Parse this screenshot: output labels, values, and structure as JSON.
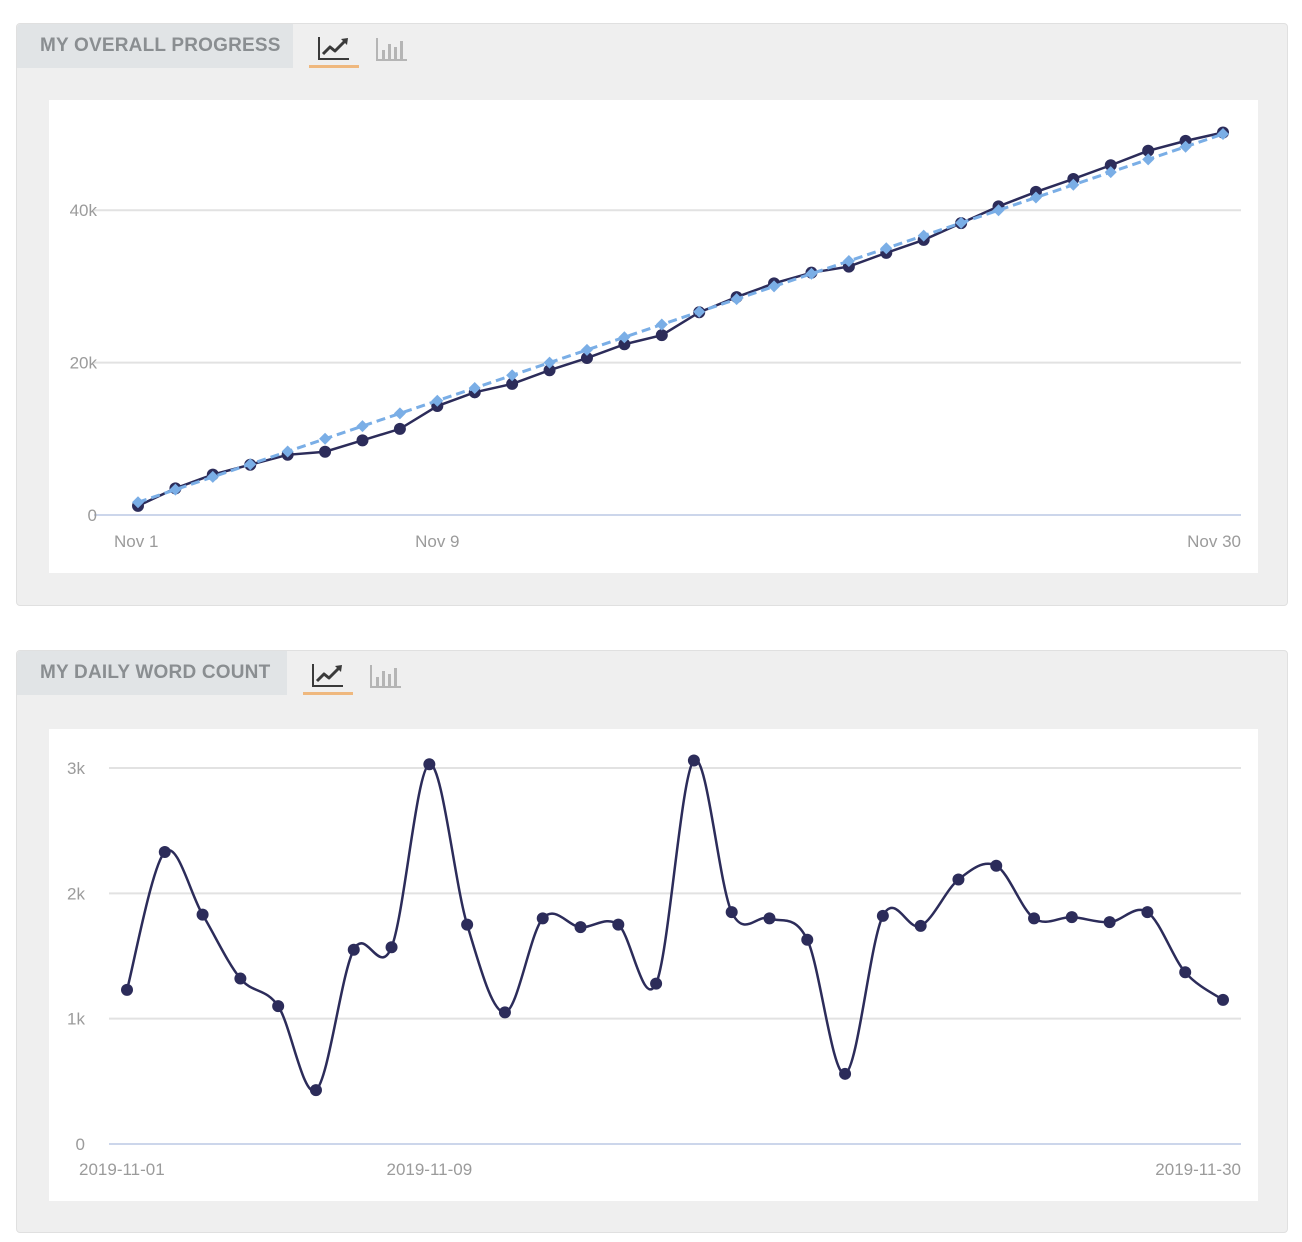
{
  "panels": {
    "progress": {
      "title": "MY OVERALL PROGRESS",
      "tabs": [
        {
          "icon": "line-chart-icon",
          "active": true
        },
        {
          "icon": "bar-chart-icon",
          "active": false
        }
      ]
    },
    "daily": {
      "title": "MY DAILY WORD COUNT",
      "tabs": [
        {
          "icon": "line-chart-icon",
          "active": true
        },
        {
          "icon": "bar-chart-icon",
          "active": false
        }
      ]
    }
  },
  "colors": {
    "actual": "#2c2c5a",
    "target": "#7aaee6",
    "grid": "#e2e2e2",
    "axis": "#ccd6eb",
    "tab_active": "#efb87e",
    "tick_text": "#9b9b9b"
  },
  "chart_data": [
    {
      "type": "line",
      "x": [
        "Nov 1",
        "Nov 2",
        "Nov 3",
        "Nov 4",
        "Nov 5",
        "Nov 6",
        "Nov 7",
        "Nov 8",
        "Nov 9",
        "Nov 10",
        "Nov 11",
        "Nov 12",
        "Nov 13",
        "Nov 14",
        "Nov 15",
        "Nov 16",
        "Nov 17",
        "Nov 18",
        "Nov 19",
        "Nov 20",
        "Nov 21",
        "Nov 22",
        "Nov 23",
        "Nov 24",
        "Nov 25",
        "Nov 26",
        "Nov 27",
        "Nov 28",
        "Nov 29",
        "Nov 30"
      ],
      "x_tick_labels": [
        "Nov 1",
        "Nov 9",
        "Nov 30"
      ],
      "y_ticks": [
        0,
        20000,
        40000
      ],
      "y_tick_labels": [
        "0",
        "20k",
        "40k"
      ],
      "ylim": [
        0,
        50000
      ],
      "grid": true,
      "series": [
        {
          "style": "solid-circle",
          "values": [
            1200,
            3500,
            5300,
            6600,
            7900,
            8300,
            9800,
            11300,
            14300,
            16100,
            17200,
            19000,
            20600,
            22400,
            23600,
            26600,
            28600,
            30400,
            31800,
            32600,
            34400,
            36100,
            38300,
            40500,
            42400,
            44100,
            45900,
            47800,
            49100,
            50200
          ]
        },
        {
          "style": "dashed-diamond",
          "values": [
            1667,
            3333,
            5000,
            6667,
            8333,
            10000,
            11667,
            13333,
            15000,
            16667,
            18333,
            20000,
            21667,
            23333,
            25000,
            26667,
            28333,
            30000,
            31667,
            33333,
            35000,
            36667,
            38333,
            40000,
            41667,
            43333,
            45000,
            46667,
            48333,
            50000
          ]
        }
      ]
    },
    {
      "type": "line",
      "x": [
        "2019-11-01",
        "2019-11-02",
        "2019-11-03",
        "2019-11-04",
        "2019-11-05",
        "2019-11-06",
        "2019-11-07",
        "2019-11-08",
        "2019-11-09",
        "2019-11-10",
        "2019-11-11",
        "2019-11-12",
        "2019-11-13",
        "2019-11-14",
        "2019-11-15",
        "2019-11-16",
        "2019-11-17",
        "2019-11-18",
        "2019-11-19",
        "2019-11-20",
        "2019-11-21",
        "2019-11-22",
        "2019-11-23",
        "2019-11-24",
        "2019-11-25",
        "2019-11-26",
        "2019-11-27",
        "2019-11-28",
        "2019-11-29",
        "2019-11-30"
      ],
      "x_tick_labels": [
        "2019-11-01",
        "2019-11-09",
        "2019-11-30"
      ],
      "y_ticks": [
        0,
        1000,
        2000,
        3000
      ],
      "y_tick_labels": [
        "0",
        "1k",
        "2k",
        "3k"
      ],
      "ylim": [
        0,
        3000
      ],
      "grid": true,
      "series": [
        {
          "style": "smooth-circle",
          "values": [
            1230,
            2330,
            1830,
            1320,
            1100,
            430,
            1550,
            1570,
            3030,
            1750,
            1050,
            1800,
            1730,
            1750,
            1280,
            3060,
            1850,
            1800,
            1630,
            560,
            1820,
            1740,
            2110,
            2220,
            1800,
            1810,
            1770,
            1850,
            1370,
            1150
          ]
        }
      ]
    }
  ]
}
